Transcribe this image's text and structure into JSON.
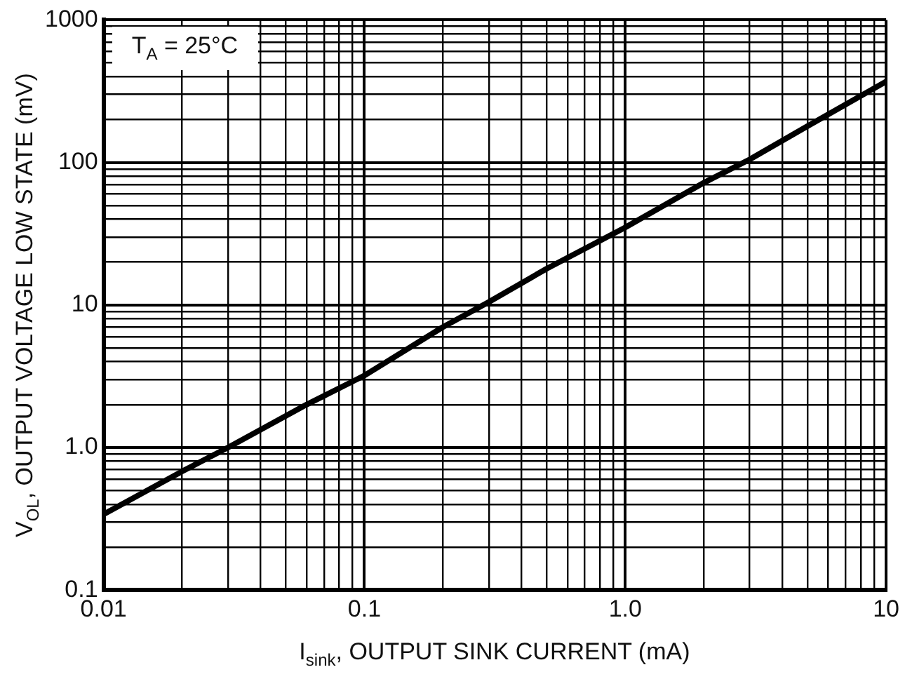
{
  "chart_data": {
    "type": "line",
    "xlabel": "I$_{sink}$, OUTPUT SINK CURRENT (mA)",
    "ylabel": "V$_{OL}$, OUTPUT VOLTAGE LOW STATE (mV)",
    "annotations": [
      "T$_{A}$ = 25°C"
    ],
    "log": "xy",
    "grid": true,
    "legend": false,
    "marker": "none",
    "line_style": "solid",
    "xlim": [
      0.01,
      10
    ],
    "ylim": [
      0.1,
      1000
    ],
    "xticks": [
      0.01,
      {
        "value": 0.02,
        "label": null
      },
      {
        "value": 0.03,
        "label": null
      },
      {
        "value": 0.04,
        "label": null
      },
      {
        "value": 0.05,
        "label": null
      },
      {
        "value": 0.06,
        "label": null
      },
      {
        "value": 0.07,
        "label": null
      },
      {
        "value": 0.08,
        "label": null
      },
      {
        "value": 0.09,
        "label": null
      },
      0.1,
      {
        "value": 0.2,
        "label": null
      },
      {
        "value": 0.3,
        "label": null
      },
      {
        "value": 0.4,
        "label": null
      },
      {
        "value": 0.5,
        "label": null
      },
      {
        "value": 0.6,
        "label": null
      },
      {
        "value": 0.7,
        "label": null
      },
      {
        "value": 0.8,
        "label": null
      },
      {
        "value": 0.9,
        "label": null
      },
      {
        "value": 1,
        "label": "1.0"
      },
      {
        "value": 2,
        "label": null
      },
      {
        "value": 3,
        "label": null
      },
      {
        "value": 4,
        "label": null
      },
      {
        "value": 5,
        "label": null
      },
      {
        "value": 6,
        "label": null
      },
      {
        "value": 7,
        "label": null
      },
      {
        "value": 8,
        "label": null
      },
      {
        "value": 9,
        "label": null
      },
      10
    ],
    "yticks": [
      0.1,
      {
        "value": 0.2,
        "label": null
      },
      {
        "value": 0.3,
        "label": null
      },
      {
        "value": 0.4,
        "label": null
      },
      {
        "value": 0.5,
        "label": null
      },
      {
        "value": 0.6,
        "label": null
      },
      {
        "value": 0.7,
        "label": null
      },
      {
        "value": 0.8,
        "label": null
      },
      {
        "value": 0.9,
        "label": null
      },
      {
        "value": 1,
        "label": "1.0"
      },
      {
        "value": 2,
        "label": null
      },
      {
        "value": 3,
        "label": null
      },
      {
        "value": 4,
        "label": null
      },
      {
        "value": 5,
        "label": null
      },
      {
        "value": 6,
        "label": null
      },
      {
        "value": 7,
        "label": null
      },
      {
        "value": 8,
        "label": null
      },
      {
        "value": 9,
        "label": null
      },
      10,
      {
        "value": 20,
        "label": null
      },
      {
        "value": 30,
        "label": null
      },
      {
        "value": 40,
        "label": null
      },
      {
        "value": 50,
        "label": null
      },
      {
        "value": 60,
        "label": null
      },
      {
        "value": 70,
        "label": null
      },
      {
        "value": 80,
        "label": null
      },
      {
        "value": 90,
        "label": null
      },
      100,
      {
        "value": 200,
        "label": null
      },
      {
        "value": 300,
        "label": null
      },
      {
        "value": 400,
        "label": null
      },
      {
        "value": 500,
        "label": null
      },
      {
        "value": 600,
        "label": null
      },
      {
        "value": 700,
        "label": null
      },
      {
        "value": 800,
        "label": null
      },
      {
        "value": 900,
        "label": null
      },
      1000
    ],
    "x": [
      0.01,
      0.02,
      0.03,
      0.06,
      0.1,
      0.2,
      0.3,
      0.5,
      1,
      2,
      3,
      5,
      10
    ],
    "series": [
      {
        "color": "#000000",
        "values": [
          0.34,
          0.68,
          1.0,
          2.0,
          3.2,
          7.0,
          10.5,
          18,
          35,
          72,
          105,
          180,
          370
        ]
      }
    ]
  }
}
